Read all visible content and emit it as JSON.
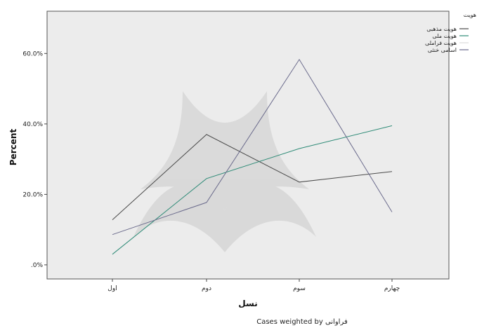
{
  "chart_data": {
    "type": "line",
    "xlabel": "نسل",
    "ylabel": "Percent",
    "categories": [
      "اول",
      "دوم",
      "سوم",
      "چهارم"
    ],
    "ylim": [
      -4,
      72
    ],
    "yticks": [
      0,
      20,
      40,
      60
    ],
    "ytick_labels": [
      ".0%",
      "20.0%",
      "40.0%",
      "60.0%"
    ],
    "legend_title": "هویت",
    "legend_position": "right",
    "series": [
      {
        "name": "هویت مذهبی",
        "values": [
          12.8,
          37.0,
          23.5,
          26.5
        ],
        "color": "#4a4a4a"
      },
      {
        "name": "هویت ملی",
        "values": [
          3.0,
          24.5,
          33.0,
          39.5
        ],
        "color": "#2e8b77"
      },
      {
        "name": "هویت فراملی",
        "values": [
          null,
          null,
          null,
          null
        ],
        "color": "#dcdcdc"
      },
      {
        "name": "اسامی خنثی",
        "values": [
          8.6,
          17.7,
          58.3,
          15.0
        ],
        "color": "#6b6b8c"
      }
    ],
    "footnote": "Cases weighted by فراوانی",
    "grid": false,
    "background": "#ececec"
  }
}
